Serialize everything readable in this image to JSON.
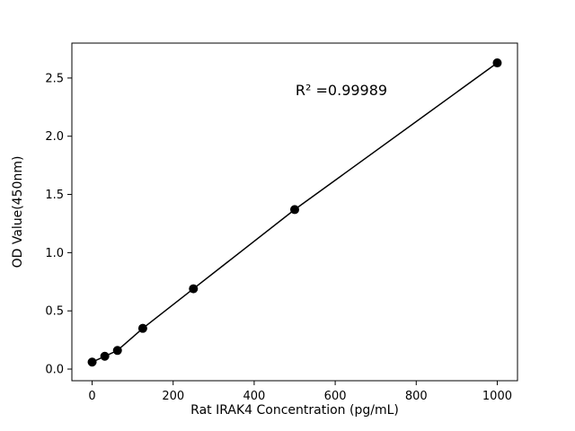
{
  "chart_data": {
    "type": "scatter",
    "title": "",
    "xlabel": "Rat IRAK4 Concentration (pg/mL)",
    "ylabel": "OD Value(450nm)",
    "annotation": "R² =0.99989",
    "x": [
      0,
      31.25,
      62.5,
      125,
      250,
      500,
      1000
    ],
    "y": [
      0.06,
      0.11,
      0.16,
      0.35,
      0.69,
      1.37,
      2.63
    ],
    "xlim": [
      -50,
      1050
    ],
    "ylim": [
      -0.1,
      2.8
    ],
    "xticks": [
      0,
      200,
      400,
      600,
      800,
      1000
    ],
    "yticks": [
      0.0,
      0.5,
      1.0,
      1.5,
      2.0,
      2.5
    ],
    "grid": false,
    "legend": "none",
    "marker_color": "#000000",
    "line_color": "#000000",
    "background_color": "#ffffff"
  }
}
